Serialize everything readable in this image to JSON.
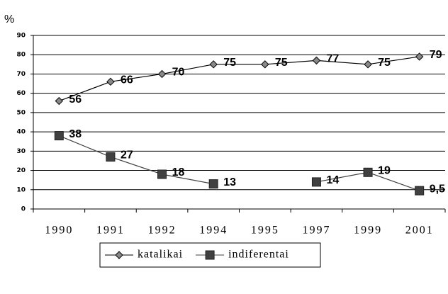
{
  "chart_data": {
    "type": "line",
    "y_label": "%",
    "categories": [
      "1990",
      "1991",
      "1992",
      "1994",
      "1995",
      "1997",
      "1999",
      "2001"
    ],
    "series": [
      {
        "name": "katalikai",
        "color": "#000000",
        "marker": "diamond",
        "values": [
          56,
          66,
          70,
          75,
          75,
          77,
          75,
          79
        ]
      },
      {
        "name": "indiferentai",
        "color": "#404040",
        "marker": "square",
        "values": [
          38,
          27,
          18,
          13,
          null,
          14,
          19,
          9.5
        ],
        "value_labels": [
          "38",
          "27",
          "18",
          "13",
          null,
          "14",
          "19",
          "9,5"
        ]
      }
    ],
    "ylim": [
      0,
      90
    ],
    "yticks": [
      0,
      10,
      20,
      30,
      40,
      50,
      60,
      70,
      80,
      90
    ],
    "grid": true,
    "legend": "bottom"
  }
}
